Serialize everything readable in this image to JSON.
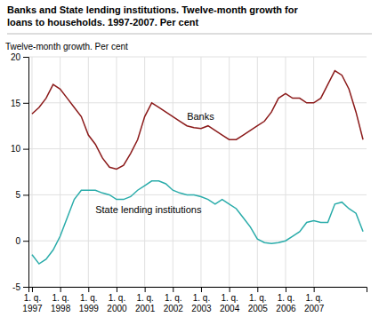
{
  "chart_data": {
    "type": "line",
    "title": "Banks and State lending institutions. Twelve-month growth for\nloans to households. 1997-2007. Per cent",
    "ylabel": "Twelve-month growth. Per cent",
    "categories": [
      "1. q.\n1997",
      null,
      null,
      null,
      "1. q.\n1998",
      null,
      null,
      null,
      "1. q.\n1999",
      null,
      null,
      null,
      "1. q.\n2000",
      null,
      null,
      null,
      "1. q.\n2001",
      null,
      null,
      null,
      "1. q.\n2002",
      null,
      null,
      null,
      "1. q.\n2003",
      null,
      null,
      null,
      "1. q.\n2004",
      null,
      null,
      null,
      "1. q.\n2005",
      null,
      null,
      null,
      "1. q.\n2006",
      null,
      null,
      null,
      "1. q.\n2007",
      null,
      null,
      null,
      null,
      null,
      null,
      null
    ],
    "series": [
      {
        "name": "Banks",
        "color": "#8B1A1A",
        "values": [
          13.8,
          14.5,
          15.5,
          17.0,
          16.5,
          15.5,
          14.5,
          13.5,
          11.5,
          10.5,
          9.0,
          8.0,
          7.8,
          8.2,
          9.5,
          11.0,
          13.5,
          15.0,
          14.5,
          14.0,
          13.5,
          13.0,
          12.5,
          12.3,
          12.2,
          12.5,
          12.0,
          11.5,
          11.0,
          11.0,
          11.5,
          12.0,
          12.5,
          13.0,
          14.0,
          15.5,
          16.0,
          15.5,
          15.5,
          15.0,
          15.0,
          15.5,
          17.0,
          18.5,
          18.0,
          16.5,
          14.0,
          11.0
        ]
      },
      {
        "name": "State lending institutions",
        "color": "#2AACAA",
        "values": [
          -1.5,
          -2.5,
          -2.0,
          -1.0,
          0.5,
          2.5,
          4.5,
          5.5,
          5.5,
          5.5,
          5.2,
          5.0,
          4.5,
          4.5,
          4.8,
          5.5,
          6.0,
          6.5,
          6.5,
          6.2,
          5.5,
          5.2,
          5.0,
          5.0,
          4.8,
          4.5,
          4.0,
          4.5,
          4.0,
          3.5,
          2.5,
          1.5,
          0.2,
          -0.2,
          -0.3,
          -0.2,
          0.0,
          0.5,
          1.0,
          2.0,
          2.2,
          2.0,
          2.0,
          4.0,
          4.2,
          3.5,
          3.0,
          1.0
        ]
      }
    ],
    "ylim": [
      -5,
      20
    ],
    "yticks": [
      -5,
      0,
      5,
      10,
      15,
      20
    ],
    "grid": true
  }
}
